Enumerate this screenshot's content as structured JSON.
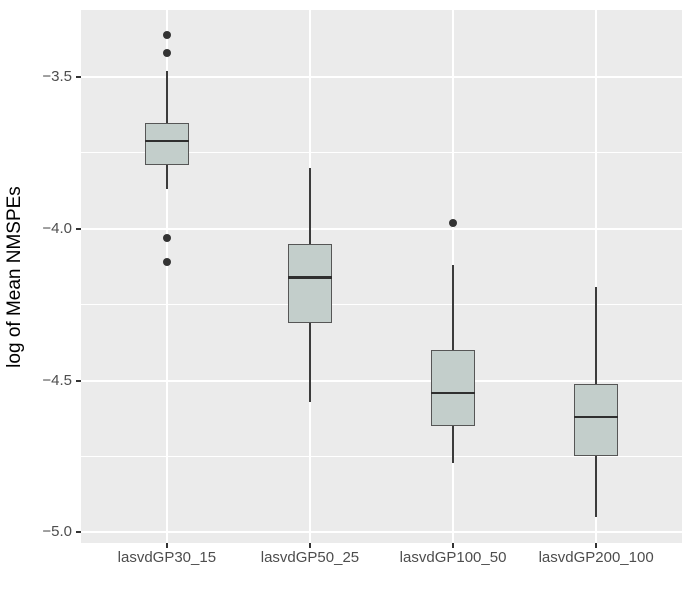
{
  "chart_data": {
    "type": "boxplot",
    "title": "",
    "xlabel": "",
    "ylabel": "log of Mean NMSPEs",
    "categories": [
      "lasvdGP30_15",
      "lasvdGP50_25",
      "lasvdGP100_50",
      "lasvdGP200_100"
    ],
    "y_ticks": [
      -3.5,
      -4.0,
      -4.5,
      -5.0
    ],
    "y_tick_labels": [
      "−3.5",
      "−4.0",
      "−4.5",
      "−5.0"
    ],
    "y_minor_ticks": [
      -3.75,
      -4.25,
      -4.75
    ],
    "ylim": [
      -5.035,
      -3.279
    ],
    "grid": true,
    "legend": "none",
    "series": [
      {
        "category": "lasvdGP30_15",
        "whisker_low": -3.87,
        "q1": -3.79,
        "median": -3.71,
        "q3": -3.65,
        "whisker_high": -3.48,
        "outliers": [
          -3.36,
          -3.42,
          -4.03,
          -4.11
        ]
      },
      {
        "category": "lasvdGP50_25",
        "whisker_low": -4.57,
        "q1": -4.31,
        "median": -4.16,
        "q3": -4.05,
        "whisker_high": -3.8,
        "outliers": []
      },
      {
        "category": "lasvdGP100_50",
        "whisker_low": -4.77,
        "q1": -4.65,
        "median": -4.54,
        "q3": -4.4,
        "whisker_high": -4.12,
        "outliers": [
          -3.98
        ]
      },
      {
        "category": "lasvdGP200_100",
        "whisker_low": -4.95,
        "q1": -4.75,
        "median": -4.62,
        "q3": -4.51,
        "whisker_high": -4.19,
        "outliers": []
      }
    ],
    "colors": {
      "figure_bg": "#ffffff",
      "panel_bg": "#ebebeb",
      "grid": "#ffffff",
      "box_fill": "#c3cecb",
      "box_border": "#565656",
      "median": "#2f2f2f",
      "whisker": "#3b3b3b",
      "outlier": "#333333",
      "tick_label": "#4d4d4d",
      "tick_mark": "#333333",
      "axis_title": "#000000"
    }
  }
}
